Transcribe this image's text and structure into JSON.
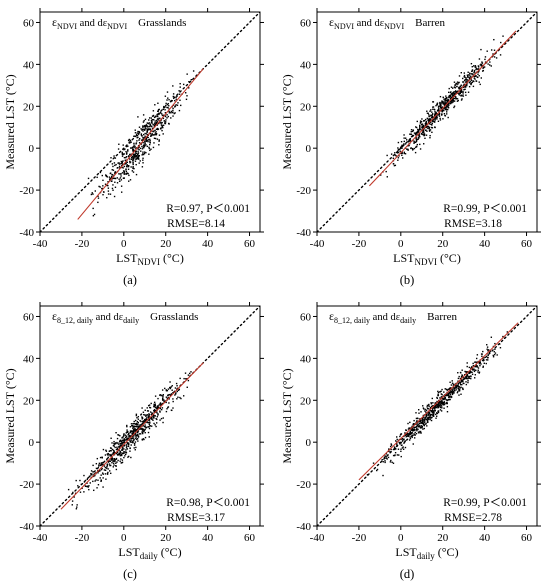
{
  "chart_data": [
    {
      "type": "scatter",
      "panel_label": "(a)",
      "title": {
        "eps": "ε",
        "eps_sub": "NDVI",
        "mid": " and dε",
        "mid_sub": "NDVI",
        "land": "Grasslands"
      },
      "xlabel": {
        "main": "LST",
        "sub": "NDVI",
        "unit": " (°C)"
      },
      "ylabel": "Measured LST  (°C)",
      "xlim": [
        -40,
        65
      ],
      "ylim": [
        -40,
        65
      ],
      "xticks": [
        "-40",
        "-20",
        "0",
        "20",
        "40",
        "60"
      ],
      "yticks": [
        "-40",
        "-20",
        "0",
        "20",
        "40",
        "60"
      ],
      "stats": {
        "r_p": "R=0.97, P＜0.001",
        "rmse": "RMSE=8.14"
      },
      "fit": {
        "x": [
          -22,
          38
        ],
        "y": [
          -34,
          38
        ]
      },
      "cloud": {
        "x_range": [
          -22,
          38
        ],
        "slope": 1.2,
        "intercept": -8,
        "spread": 4.5,
        "count": 600
      },
      "colors": {
        "points": "#000000",
        "fit": "#c0392b",
        "identity": "#000000"
      }
    },
    {
      "type": "scatter",
      "panel_label": "(b)",
      "title": {
        "eps": "ε",
        "eps_sub": "NDVI",
        "mid": " and dε",
        "mid_sub": "NDVI",
        "land": "Barren"
      },
      "xlabel": {
        "main": "LST",
        "sub": "NDVI",
        "unit": " (°C)"
      },
      "ylabel": "Measured LST  (°C)",
      "xlim": [
        -40,
        65
      ],
      "ylim": [
        -40,
        65
      ],
      "xticks": [
        "-40",
        "-20",
        "0",
        "20",
        "40",
        "60"
      ],
      "yticks": [
        "-40",
        "-20",
        "0",
        "20",
        "40",
        "60"
      ],
      "stats": {
        "r_p": "R=0.99, P＜0.001",
        "rmse": "RMSE=3.18"
      },
      "fit": {
        "x": [
          -15,
          55
        ],
        "y": [
          -18,
          56
        ]
      },
      "cloud": {
        "x_range": [
          -15,
          55
        ],
        "slope": 1.06,
        "intercept": -2,
        "spread": 2.8,
        "count": 650
      },
      "colors": {
        "points": "#000000",
        "fit": "#c0392b",
        "identity": "#000000"
      }
    },
    {
      "type": "scatter",
      "panel_label": "(c)",
      "title": {
        "eps": "ε",
        "eps_sub": "8_12, daily",
        "mid": " and dε",
        "mid_sub": "daily",
        "land": "Grasslands"
      },
      "xlabel": {
        "main": "LST",
        "sub": "daily",
        "unit": " (°C)"
      },
      "ylabel": "Measured LST  (°C)",
      "xlim": [
        -40,
        65
      ],
      "ylim": [
        -40,
        65
      ],
      "xticks": [
        "-40",
        "-20",
        "0",
        "20",
        "40",
        "60"
      ],
      "yticks": [
        "-40",
        "-20",
        "0",
        "20",
        "40",
        "60"
      ],
      "stats": {
        "r_p": "R=0.98, P＜0.001",
        "rmse": "RMSE=3.17"
      },
      "fit": {
        "x": [
          -30,
          38
        ],
        "y": [
          -32,
          38
        ]
      },
      "cloud": {
        "x_range": [
          -30,
          38
        ],
        "slope": 1.03,
        "intercept": -1,
        "spread": 3.6,
        "count": 650
      },
      "colors": {
        "points": "#000000",
        "fit": "#c0392b",
        "identity": "#000000"
      }
    },
    {
      "type": "scatter",
      "panel_label": "(d)",
      "title": {
        "eps": "ε",
        "eps_sub": "8_12, daily",
        "mid": " and dε",
        "mid_sub": "daily",
        "land": "Barren"
      },
      "xlabel": {
        "main": "LST",
        "sub": "daily",
        "unit": " (°C)"
      },
      "ylabel": "Measured LST  (°C)",
      "xlim": [
        -40,
        65
      ],
      "ylim": [
        -40,
        65
      ],
      "xticks": [
        "-40",
        "-20",
        "0",
        "20",
        "40",
        "60"
      ],
      "yticks": [
        "-40",
        "-20",
        "0",
        "20",
        "40",
        "60"
      ],
      "stats": {
        "r_p": "R=0.99, P＜0.001",
        "rmse": "RMSE=2.78"
      },
      "fit": {
        "x": [
          -20,
          56
        ],
        "y": [
          -18,
          57
        ]
      },
      "cloud": {
        "x_range": [
          -20,
          56
        ],
        "slope": 1.0,
        "intercept": 0,
        "spread": 2.5,
        "count": 700
      },
      "colors": {
        "points": "#000000",
        "fit": "#c0392b",
        "identity": "#000000"
      }
    }
  ]
}
